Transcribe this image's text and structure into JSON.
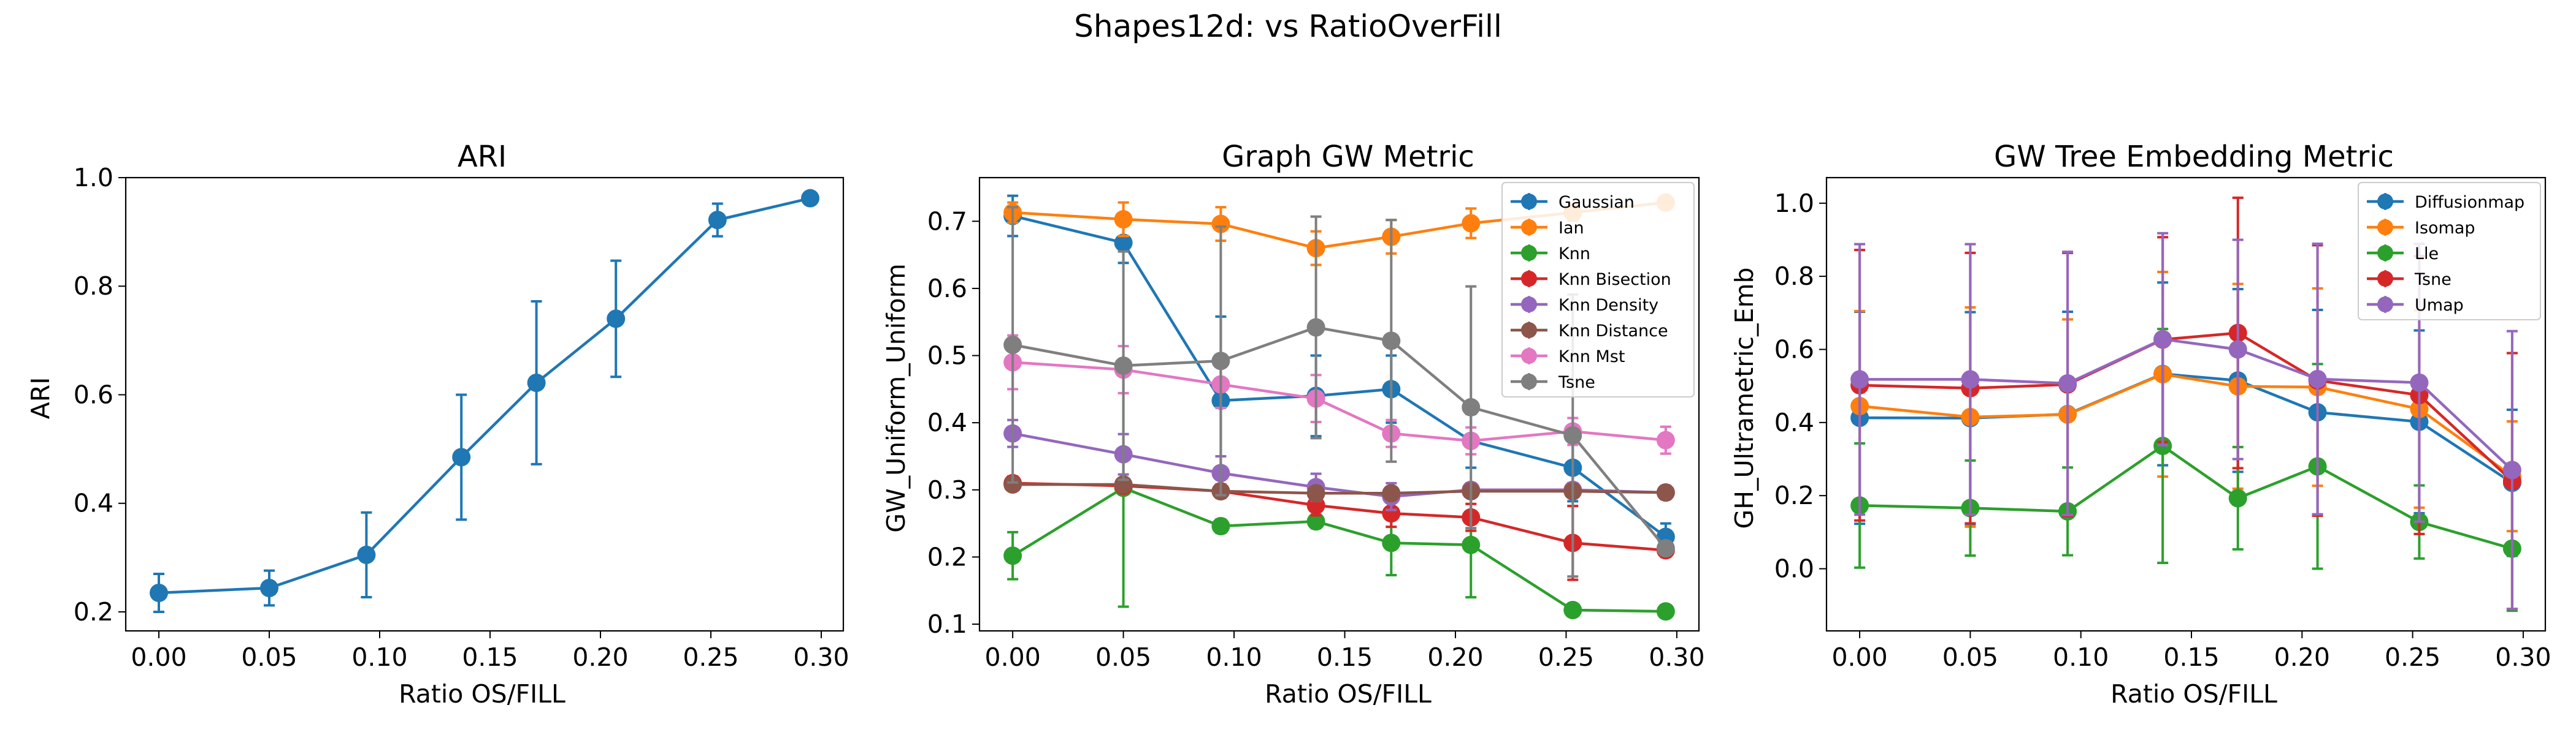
{
  "figure": {
    "suptitle": "Shapes12d: vs RatioOverFill"
  },
  "chart_data": [
    {
      "type": "line",
      "title": "ARI",
      "xlabel": "Ratio OS/FILL",
      "ylabel": "ARI",
      "xlim": [
        -0.015,
        0.31
      ],
      "ylim": [
        0.165,
        1.0
      ],
      "xticks": [
        "0.00",
        "0.05",
        "0.10",
        "0.15",
        "0.20",
        "0.25",
        "0.30"
      ],
      "yticks": [
        "0.2",
        "0.4",
        "0.6",
        "0.8",
        "1.0"
      ],
      "x": [
        0.0,
        0.05,
        0.094,
        0.137,
        0.171,
        0.207,
        0.253,
        0.295
      ],
      "legend": null,
      "series": [
        {
          "color": "#1f77b4",
          "values": [
            0.235,
            0.244,
            0.305,
            0.485,
            0.622,
            0.74,
            0.922,
            0.962
          ],
          "errors": [
            0.035,
            0.032,
            0.078,
            0.115,
            0.15,
            0.107,
            0.03,
            0.0
          ]
        }
      ]
    },
    {
      "type": "line",
      "title": "Graph GW Metric",
      "xlabel": "Ratio OS/FILL",
      "ylabel": "GW_Uniform_Uniform",
      "xlim": [
        -0.015,
        0.31
      ],
      "ylim": [
        0.09,
        0.765
      ],
      "xticks": [
        "0.00",
        "0.05",
        "0.10",
        "0.15",
        "0.20",
        "0.25",
        "0.30"
      ],
      "yticks": [
        "0.1",
        "0.2",
        "0.3",
        "0.4",
        "0.5",
        "0.6",
        "0.7"
      ],
      "x": [
        0.0,
        0.05,
        0.094,
        0.137,
        0.171,
        0.207,
        0.253,
        0.295
      ],
      "legend": "top-right",
      "series": [
        {
          "name": "Gaussian",
          "color": "#1f77b4",
          "values": [
            0.708,
            0.668,
            0.433,
            0.44,
            0.45,
            0.373,
            0.333,
            0.23
          ],
          "errors": [
            0.03,
            0.03,
            0.125,
            0.06,
            0.05,
            0.04,
            0.05,
            0.02
          ]
        },
        {
          "name": "Ian",
          "color": "#ff7f0e",
          "values": [
            0.713,
            0.703,
            0.696,
            0.66,
            0.677,
            0.697,
            0.713,
            0.728
          ],
          "errors": [
            0.015,
            0.025,
            0.025,
            0.025,
            0.025,
            0.022,
            0.012,
            0.005
          ]
        },
        {
          "name": "Knn",
          "color": "#2ca02c",
          "values": [
            0.202,
            0.303,
            0.246,
            0.253,
            0.221,
            0.218,
            0.121,
            0.119
          ],
          "errors": [
            0.035,
            0.177,
            0.01,
            0.01,
            0.048,
            0.078,
            0.005,
            0.005
          ]
        },
        {
          "name": "Knn Bisection",
          "color": "#d62728",
          "values": [
            0.31,
            0.306,
            0.298,
            0.277,
            0.265,
            0.259,
            0.221,
            0.21
          ],
          "errors": [
            0.01,
            0.01,
            0.01,
            0.015,
            0.02,
            0.02,
            0.055,
            0.01
          ]
        },
        {
          "name": "Knn Density",
          "color": "#9467bd",
          "values": [
            0.384,
            0.353,
            0.325,
            0.304,
            0.29,
            0.3,
            0.3,
            0.296
          ],
          "errors": [
            0.02,
            0.03,
            0.025,
            0.02,
            0.02,
            0.01,
            0.01,
            0.01
          ]
        },
        {
          "name": "Knn Distance",
          "color": "#8c564b",
          "values": [
            0.308,
            0.308,
            0.298,
            0.295,
            0.295,
            0.298,
            0.298,
            0.296
          ],
          "errors": [
            0.005,
            0.005,
            0.005,
            0.005,
            0.005,
            0.005,
            0.005,
            0.005
          ]
        },
        {
          "name": "Knn Mst",
          "color": "#e377c2",
          "values": [
            0.49,
            0.479,
            0.457,
            0.436,
            0.384,
            0.373,
            0.387,
            0.374
          ],
          "errors": [
            0.04,
            0.035,
            0.035,
            0.035,
            0.02,
            0.02,
            0.02,
            0.02
          ]
        },
        {
          "name": "Tsne",
          "color": "#7f7f7f",
          "values": [
            0.516,
            0.485,
            0.492,
            0.542,
            0.522,
            0.423,
            0.381,
            0.213
          ],
          "errors": [
            0.205,
            0.17,
            0.2,
            0.165,
            0.18,
            0.18,
            0.21,
            0.01
          ]
        }
      ]
    },
    {
      "type": "line",
      "title": "GW Tree Embedding Metric",
      "xlabel": "Ratio OS/FILL",
      "ylabel": "GH_Ultrametric_Emb",
      "xlim": [
        -0.015,
        0.31
      ],
      "ylim": [
        -0.17,
        1.07
      ],
      "xticks": [
        "0.00",
        "0.05",
        "0.10",
        "0.15",
        "0.20",
        "0.25",
        "0.30"
      ],
      "yticks": [
        "0.0",
        "0.2",
        "0.4",
        "0.6",
        "0.8",
        "1.0"
      ],
      "x": [
        0.0,
        0.05,
        0.094,
        0.137,
        0.171,
        0.207,
        0.253,
        0.295
      ],
      "legend": "top-right",
      "series": [
        {
          "name": "Diffusionmap",
          "color": "#1f77b4",
          "values": [
            0.413,
            0.412,
            0.423,
            0.533,
            0.515,
            0.428,
            0.402,
            0.235
          ],
          "errors": [
            0.29,
            0.29,
            0.28,
            0.25,
            0.25,
            0.28,
            0.25,
            0.2
          ]
        },
        {
          "name": "Isomap",
          "color": "#ff7f0e",
          "values": [
            0.445,
            0.415,
            0.422,
            0.532,
            0.499,
            0.497,
            0.437,
            0.253
          ],
          "errors": [
            0.26,
            0.3,
            0.26,
            0.28,
            0.28,
            0.27,
            0.27,
            0.15
          ]
        },
        {
          "name": "Lle",
          "color": "#2ca02c",
          "values": [
            0.173,
            0.166,
            0.157,
            0.336,
            0.193,
            0.28,
            0.128,
            0.055
          ],
          "errors": [
            0.17,
            0.13,
            0.12,
            0.32,
            0.14,
            0.28,
            0.1,
            0.17
          ]
        },
        {
          "name": "Tsne",
          "color": "#d62728",
          "values": [
            0.502,
            0.494,
            0.504,
            0.627,
            0.645,
            0.515,
            0.475,
            0.24
          ],
          "errors": [
            0.37,
            0.37,
            0.36,
            0.28,
            0.37,
            0.37,
            0.38,
            0.35
          ]
        },
        {
          "name": "Umap",
          "color": "#9467bd",
          "values": [
            0.518,
            0.518,
            0.507,
            0.628,
            0.6,
            0.519,
            0.509,
            0.27
          ],
          "errors": [
            0.37,
            0.37,
            0.36,
            0.29,
            0.3,
            0.37,
            0.38,
            0.38
          ]
        }
      ]
    }
  ]
}
